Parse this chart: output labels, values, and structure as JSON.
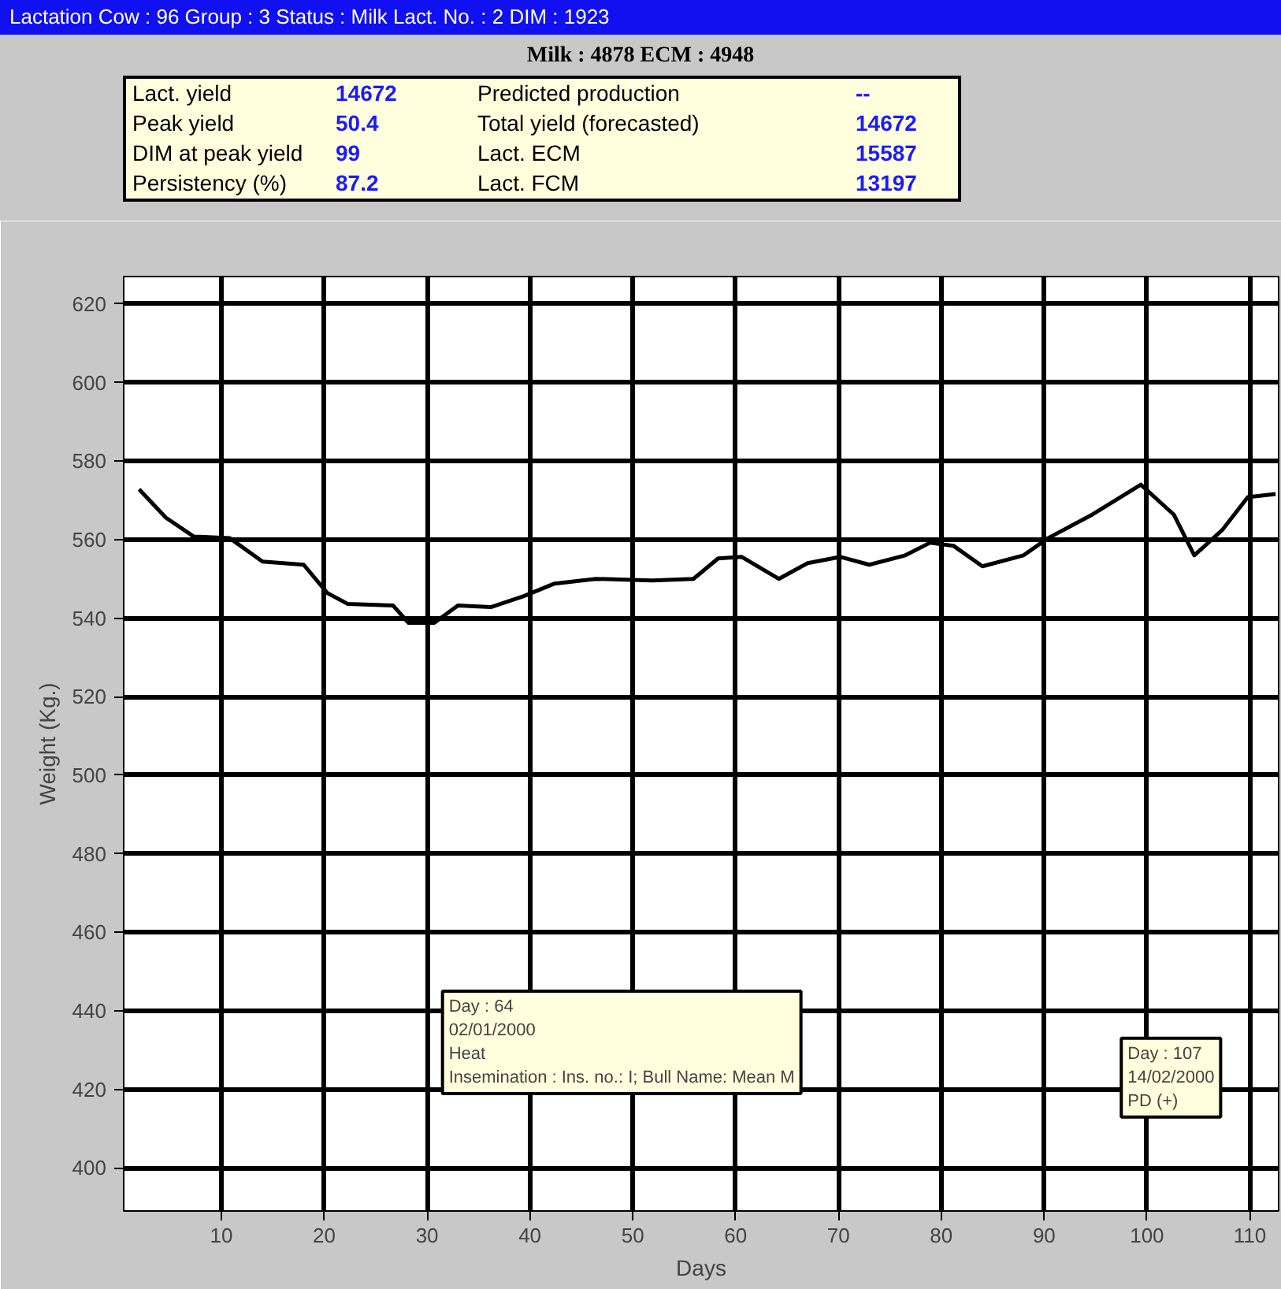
{
  "chart_data": {
    "type": "line",
    "title": "Lactation   Cow : 96   Group : 3   Status : Milk   Lact. No. : 2   DIM : 1923",
    "subtitle": "Milk : 4878   ECM : 4948",
    "xlabel": "Days",
    "ylabel": "Weight (Kg.)",
    "x": [
      2,
      4.6,
      7.3,
      10.8,
      14,
      18,
      20.3,
      22.3,
      26.7,
      28.2,
      30.7,
      33,
      36.2,
      39.4,
      42.4,
      46.4,
      51.9,
      55.9,
      58.3,
      60.6,
      64.2,
      67,
      70.2,
      73,
      76.5,
      78.9,
      81.2,
      84,
      88,
      90.4,
      94.7,
      99.4,
      102.6,
      104.6,
      107.3,
      109.8,
      112.5
    ],
    "series": [
      {
        "color": "#000000",
        "values": [
          572.8,
          565.6,
          560.8,
          560.4,
          554.4,
          553.6,
          546.4,
          543.6,
          543.2,
          538.8,
          538.8,
          543.2,
          542.8,
          545.6,
          548.8,
          550,
          549.6,
          550,
          555.2,
          555.6,
          550,
          554,
          555.6,
          553.6,
          556,
          559.2,
          558.4,
          553.2,
          556,
          560.4,
          566.4,
          574,
          566.4,
          556,
          562.4,
          570.8,
          571.6
        ]
      }
    ],
    "xlim": [
      0.5,
      112.8
    ],
    "ylim": [
      389,
      627
    ],
    "xticks": [
      10,
      20,
      30,
      40,
      50,
      60,
      70,
      80,
      90,
      100,
      110
    ],
    "yticks": [
      400,
      420,
      440,
      460,
      480,
      500,
      520,
      540,
      560,
      580,
      600,
      620
    ],
    "grid": true,
    "marker": "none",
    "line_style": "solid",
    "annotations": [
      "Lact. yield",
      "14672",
      "Predicted production",
      "--",
      "Peak yield",
      "50.4",
      "Total yield (forecasted)",
      "14672",
      "DIM at peak yield",
      "99",
      "Lact. ECM",
      "15587",
      "Persistency (%)",
      "87.2",
      "Lact. FCM",
      "13197",
      "Day : 64\n02/01/2000\nHeat\nInsemination : Ins. no.: I; Bull Name: Mean M",
      "Day : 107\n14/02/2000\nPD (+)"
    ]
  }
}
